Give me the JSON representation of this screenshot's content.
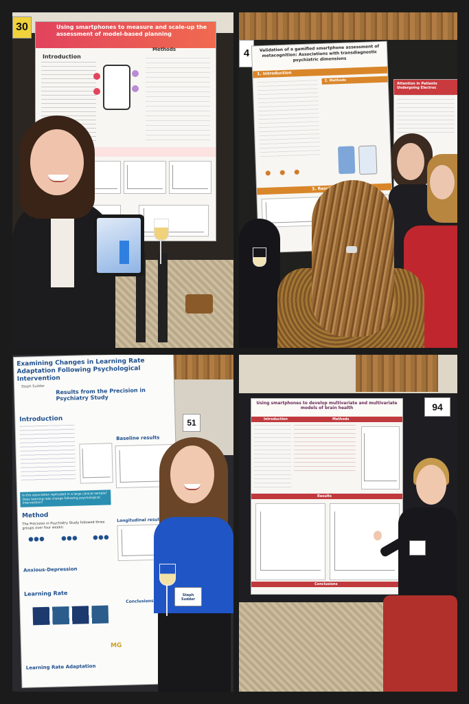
{
  "panel1": {
    "board_number": "30",
    "poster_title": "Using smartphones to measure and scale-up the assessment of model-based planning",
    "sections": {
      "intro": "Introduction",
      "methods": "Methods"
    }
  },
  "panel2": {
    "board_number": "4",
    "poster_title": "Validation of a gamified smartphone assessment of metacognition: Associations with transdiagnostic psychiatric dimensions",
    "sections": {
      "intro": "1. Introduction",
      "methods": "2. Methods",
      "results": "3. Results"
    },
    "second_poster_title": "Attention in Patients Undergoing Electroc"
  },
  "panel3": {
    "board_number": "51",
    "poster_title": "Examining Changes in Learning Rate Adaptation Following Psychological Intervention",
    "poster_subtitle": "Results from the Precision in Psychiatry Study",
    "authors": "Steph Sudder",
    "sections": {
      "intro": "Introduction",
      "baseline": "Baseline results",
      "method": "Method",
      "longitudinal": "Longitudinal results",
      "anxious": "Anxious-Depression",
      "learning": "Learning Rate",
      "conclusions": "Conclusions",
      "lra": "Learning Rate Adaptation"
    },
    "question": "Is this association replicated in a large clinical sample? Does learning rate change following psychological intervention?",
    "method_text": "The Precision in Psychiatry Study followed three groups over four weeks:",
    "logo_text": "MG",
    "badge_name": "Steph Sudder"
  },
  "panel4": {
    "board_number": "94",
    "poster_title": "Using smartphones to develop multivariate and multivariate models of brain health",
    "sections": {
      "intro": "Introduction",
      "methods": "Methods",
      "results": "Results",
      "conclusions": "Conclusions"
    }
  },
  "colors": {
    "poster1_banner": "#e2435d",
    "poster2_banner": "#d9862a",
    "poster3_accent": "#1e4f8c",
    "poster4_banner": "#c0393d",
    "blouse_blue": "#1f55c4",
    "skirt_red": "#b2302c"
  }
}
